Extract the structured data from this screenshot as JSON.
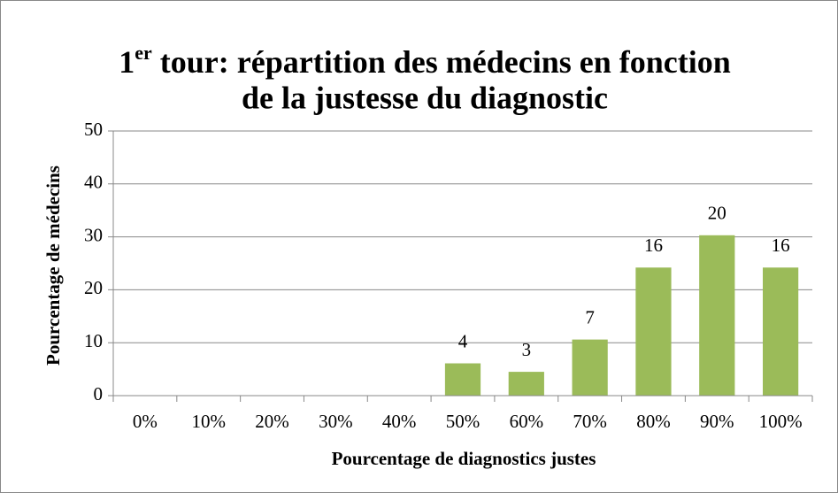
{
  "chart_data": {
    "type": "bar",
    "title": [
      "1",
      "er",
      " tour: répartition des médecins en fonction",
      "de la justesse du diagnostic"
    ],
    "x_label": "Pourcentage de diagnostics justes",
    "y_label": "Pourcentage de médecins",
    "categories": [
      "0%",
      "10%",
      "20%",
      "30%",
      "40%",
      "50%",
      "60%",
      "70%",
      "80%",
      "90%",
      "100%"
    ],
    "values": [
      0,
      0,
      0,
      0,
      0,
      6.1,
      4.5,
      10.6,
      24.2,
      30.3,
      24.2
    ],
    "counts": [
      null,
      null,
      null,
      null,
      null,
      4,
      3,
      7,
      16,
      20,
      16
    ],
    "color": "#9bbb59",
    "ylim": [
      0,
      50
    ],
    "yticks": [
      0,
      10,
      20,
      30,
      40,
      50
    ],
    "grid": true
  }
}
